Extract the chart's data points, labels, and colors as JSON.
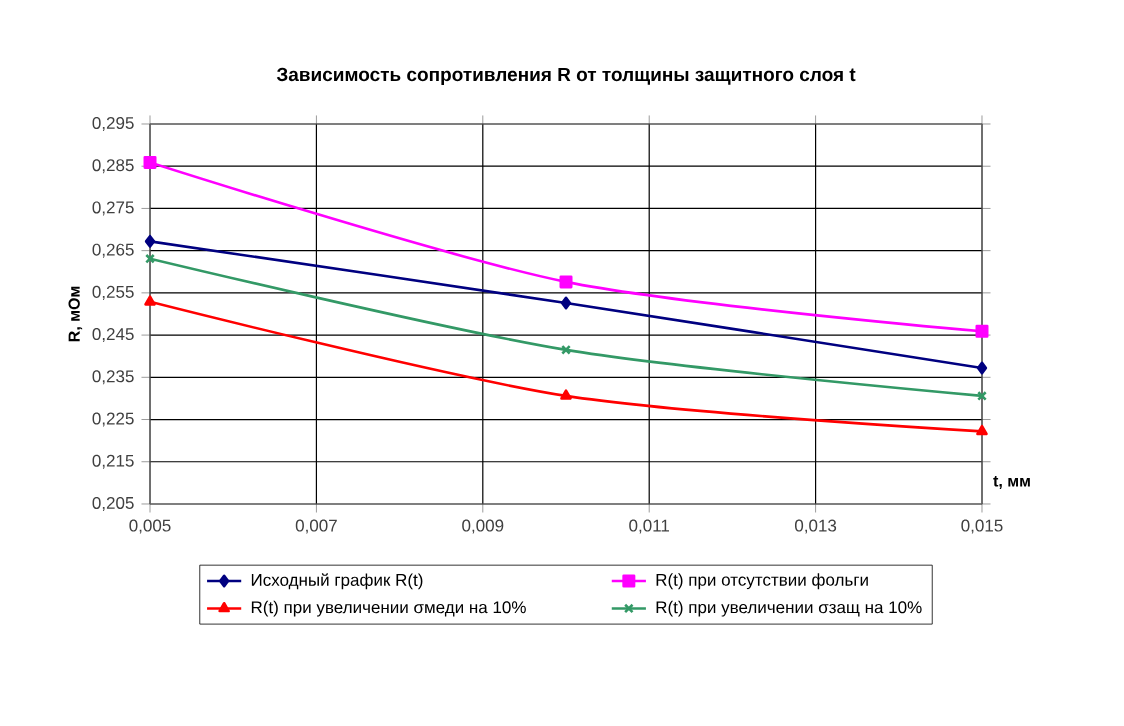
{
  "chart_data": {
    "type": "line",
    "title": "Зависимость сопротивления R от толщины защитного слоя t",
    "xlabel": "t, мм",
    "ylabel": "R, мОм",
    "x": [
      0.005,
      0.01,
      0.015
    ],
    "series": [
      {
        "name": "Исходный график R(t)",
        "color": "#000080",
        "marker": "diamond",
        "values": [
          0.2672,
          0.2526,
          0.2372
        ]
      },
      {
        "name": "R(t) при отсутствии фольги",
        "color": "#ff00ff",
        "marker": "square",
        "values": [
          0.2859,
          0.2576,
          0.2459
        ]
      },
      {
        "name": "R(t) при увеличении σмеди на 10%",
        "color": "#ff0000",
        "marker": "triangle",
        "values": [
          0.2529,
          0.2306,
          0.2222
        ]
      },
      {
        "name": "R(t) при увеличении σзащ на 10%",
        "color": "#339966",
        "marker": "cross",
        "values": [
          0.2631,
          0.2415,
          0.2306
        ]
      }
    ],
    "xlim": [
      0.005,
      0.015
    ],
    "xticks": [
      {
        "value": 0.005,
        "label": "0,005"
      },
      {
        "value": 0.007,
        "label": "0,007"
      },
      {
        "value": 0.009,
        "label": "0,009"
      },
      {
        "value": 0.011,
        "label": "0,011"
      },
      {
        "value": 0.013,
        "label": "0,013"
      },
      {
        "value": 0.015,
        "label": "0,015"
      }
    ],
    "ylim": [
      0.205,
      0.295
    ],
    "yticks": [
      {
        "value": 0.205,
        "label": "0,205"
      },
      {
        "value": 0.215,
        "label": "0,215"
      },
      {
        "value": 0.225,
        "label": "0,225"
      },
      {
        "value": 0.235,
        "label": "0,235"
      },
      {
        "value": 0.245,
        "label": "0,245"
      },
      {
        "value": 0.255,
        "label": "0,255"
      },
      {
        "value": 0.265,
        "label": "0,265"
      },
      {
        "value": 0.275,
        "label": "0,275"
      },
      {
        "value": 0.285,
        "label": "0,285"
      },
      {
        "value": 0.295,
        "label": "0,295"
      }
    ],
    "grid": true,
    "legend": "bottom",
    "line_style": "solid"
  }
}
